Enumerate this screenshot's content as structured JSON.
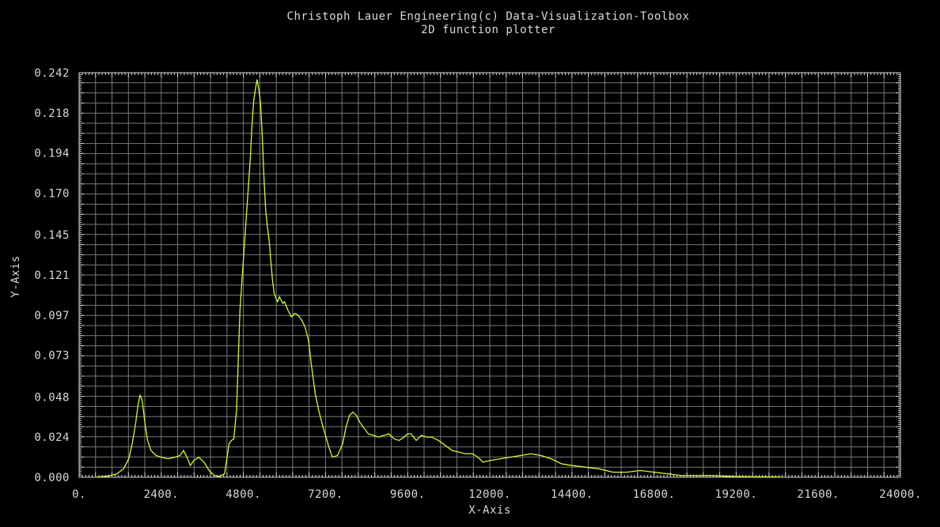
{
  "chart_data": {
    "type": "line",
    "title": "Christoph Lauer Engineering(c) Data-Visualization-Toolbox",
    "subtitle": "2D function plotter",
    "xlabel": "X-Axis",
    "ylabel": "Y-Axis",
    "xlim": [
      0,
      24000
    ],
    "ylim": [
      0,
      0.242
    ],
    "x_ticks": [
      0,
      2400,
      4800,
      7200,
      9600,
      12000,
      14400,
      16800,
      19200,
      21600,
      24000
    ],
    "x_tick_labels": [
      "0.",
      "2400.",
      "4800.",
      "7200.",
      "9600.",
      "12000.",
      "14400.",
      "16800.",
      "19200.",
      "21600.",
      "24000."
    ],
    "y_ticks": [
      0.0,
      0.024,
      0.048,
      0.073,
      0.097,
      0.121,
      0.145,
      0.17,
      0.194,
      0.218,
      0.242
    ],
    "y_tick_labels": [
      "0.000",
      "0.024",
      "0.048",
      "0.073",
      "0.097",
      "0.121",
      "0.145",
      "0.170",
      "0.194",
      "0.218",
      "0.242"
    ],
    "grid": true,
    "colors": {
      "background": "#000000",
      "axes": "#d9d9d9",
      "grid": "#7a7a7a",
      "line": "#ccff33"
    },
    "series": [
      {
        "x": [
          500,
          800,
          1100,
          1300,
          1450,
          1550,
          1650,
          1720,
          1780,
          1830,
          1880,
          1930,
          2000,
          2100,
          2250,
          2400,
          2600,
          2800,
          2950,
          3050,
          3150,
          3250,
          3350,
          3500,
          3650,
          3800,
          3950,
          4100,
          4250,
          4380,
          4450,
          4520,
          4600,
          4650,
          4700,
          4800,
          4900,
          5000,
          5050,
          5100,
          5150,
          5200,
          5250,
          5300,
          5350,
          5400,
          5450,
          5500,
          5550,
          5600,
          5650,
          5700,
          5750,
          5800,
          5850,
          5900,
          5950,
          6000,
          6100,
          6200,
          6300,
          6400,
          6500,
          6600,
          6700,
          6800,
          6900,
          7000,
          7100,
          7200,
          7300,
          7400,
          7550,
          7700,
          7800,
          7900,
          8000,
          8100,
          8200,
          8300,
          8450,
          8600,
          8750,
          8900,
          9050,
          9200,
          9350,
          9500,
          9600,
          9700,
          9850,
          10000,
          10150,
          10300,
          10500,
          10700,
          10900,
          11100,
          11300,
          11500,
          11650,
          11800,
          12000,
          12300,
          12600,
          12900,
          13200,
          13500,
          13800,
          14100,
          14400,
          14800,
          15200,
          15600,
          16000,
          16400,
          16800,
          17200,
          17600,
          18000,
          18500,
          19000,
          19500,
          20000,
          20500
        ],
        "y": [
          0.0,
          0.0005,
          0.002,
          0.005,
          0.011,
          0.02,
          0.032,
          0.043,
          0.049,
          0.047,
          0.04,
          0.031,
          0.022,
          0.016,
          0.013,
          0.012,
          0.011,
          0.012,
          0.013,
          0.016,
          0.012,
          0.007,
          0.01,
          0.012,
          0.009,
          0.004,
          0.001,
          0.0005,
          0.002,
          0.02,
          0.022,
          0.023,
          0.04,
          0.07,
          0.1,
          0.13,
          0.16,
          0.19,
          0.21,
          0.225,
          0.232,
          0.238,
          0.232,
          0.224,
          0.205,
          0.18,
          0.16,
          0.15,
          0.142,
          0.13,
          0.118,
          0.11,
          0.107,
          0.105,
          0.108,
          0.106,
          0.104,
          0.105,
          0.1,
          0.096,
          0.098,
          0.097,
          0.094,
          0.09,
          0.082,
          0.065,
          0.05,
          0.04,
          0.032,
          0.025,
          0.018,
          0.012,
          0.013,
          0.02,
          0.03,
          0.037,
          0.039,
          0.037,
          0.033,
          0.03,
          0.026,
          0.025,
          0.024,
          0.025,
          0.026,
          0.023,
          0.022,
          0.024,
          0.026,
          0.026,
          0.022,
          0.025,
          0.024,
          0.024,
          0.022,
          0.019,
          0.016,
          0.015,
          0.014,
          0.014,
          0.012,
          0.009,
          0.01,
          0.011,
          0.012,
          0.013,
          0.014,
          0.013,
          0.011,
          0.008,
          0.007,
          0.006,
          0.005,
          0.003,
          0.003,
          0.004,
          0.003,
          0.002,
          0.001,
          0.001,
          0.001,
          0.0005,
          0.0003,
          0.0002,
          0.0001
        ]
      }
    ]
  }
}
